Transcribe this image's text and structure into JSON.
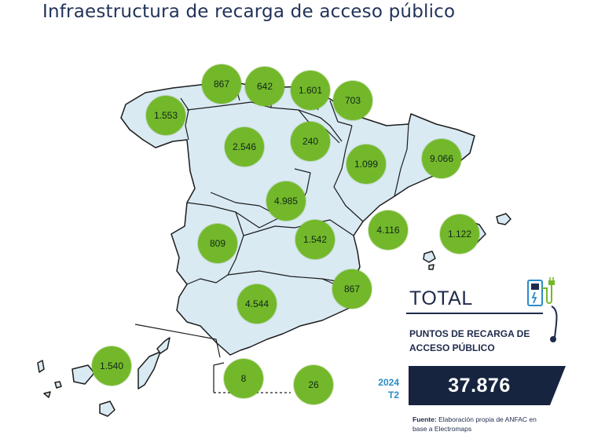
{
  "title": "Infraestructura de recarga de acceso público",
  "regions": [
    {
      "name": "Galicia",
      "value": "1.553"
    },
    {
      "name": "Asturias",
      "value": "867"
    },
    {
      "name": "Cantabria",
      "value": "642"
    },
    {
      "name": "País Vasco",
      "value": "1.601"
    },
    {
      "name": "Navarra",
      "value": "703"
    },
    {
      "name": "Castilla y León",
      "value": "2.546"
    },
    {
      "name": "La Rioja",
      "value": "240"
    },
    {
      "name": "Aragón",
      "value": "1.099"
    },
    {
      "name": "Cataluña",
      "value": "9.066"
    },
    {
      "name": "Madrid",
      "value": "4.985"
    },
    {
      "name": "Extremadura",
      "value": "809"
    },
    {
      "name": "Castilla-La Mancha",
      "value": "1.542"
    },
    {
      "name": "Comunidad Valenciana",
      "value": "4.116"
    },
    {
      "name": "Baleares",
      "value": "1.122"
    },
    {
      "name": "Murcia",
      "value": "867"
    },
    {
      "name": "Andalucía",
      "value": "4.544"
    },
    {
      "name": "Canarias",
      "value": "1.540"
    },
    {
      "name": "Ceuta",
      "value": "8"
    },
    {
      "name": "Melilla",
      "value": "26"
    }
  ],
  "total": {
    "label": "TOTAL",
    "subtitle": "PUNTOS DE RECARGA DE ACCESO PÚBLICO",
    "year": "2024",
    "period": "T2",
    "value": "37.876"
  },
  "source": {
    "label": "Fuente:",
    "text": "Elaboración propia de ANFAC en base a Electromaps"
  },
  "colors": {
    "land": "#d9eaf3",
    "bubble": "#73b82a",
    "dark": "#1f2b4d",
    "accent": "#2b8cc9"
  },
  "icons": [
    "ev-charger-icon"
  ]
}
